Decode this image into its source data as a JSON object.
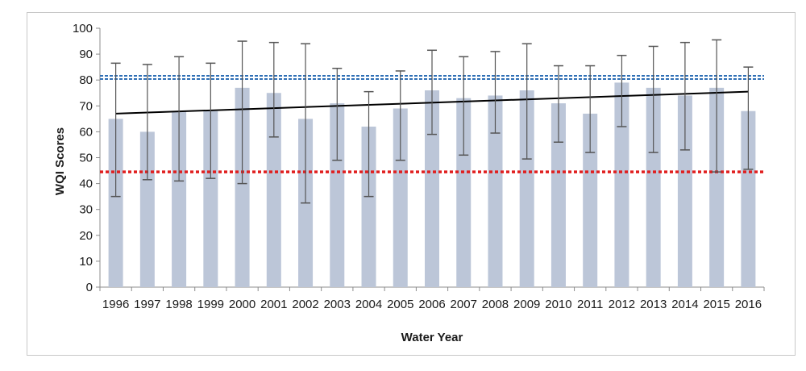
{
  "chart_data": {
    "type": "bar",
    "title": "",
    "xlabel": "Water Year",
    "ylabel": "WQI Scores",
    "ylim": [
      0,
      100
    ],
    "yticks": [
      0,
      10,
      20,
      30,
      40,
      50,
      60,
      70,
      80,
      90,
      100
    ],
    "grid": false,
    "legend": "none",
    "categories": [
      "1996",
      "1997",
      "1998",
      "1999",
      "2000",
      "2001",
      "2002",
      "2003",
      "2004",
      "2005",
      "2006",
      "2007",
      "2008",
      "2009",
      "2010",
      "2011",
      "2012",
      "2013",
      "2014",
      "2015",
      "2016"
    ],
    "series": [
      {
        "values": [
          65,
          60,
          68,
          68,
          77,
          75,
          65,
          71,
          62,
          69,
          76,
          73,
          74,
          76,
          71,
          67,
          79,
          77,
          74,
          77,
          68
        ],
        "error_low": [
          35,
          41.5,
          41,
          42,
          40,
          58,
          32.5,
          49,
          35,
          49,
          59,
          51,
          59.5,
          49.5,
          56,
          52,
          62,
          52,
          53,
          44.5,
          45.5
        ],
        "error_high": [
          86.5,
          86,
          89,
          86.5,
          95,
          94.5,
          94,
          84.5,
          75.5,
          83.5,
          91.5,
          89,
          91,
          94,
          85.5,
          85.5,
          89.5,
          93,
          94.5,
          95.5,
          85
        ],
        "color": "#bcc6d8"
      }
    ],
    "trend_line": {
      "from": 67,
      "to": 75.5,
      "color": "#000000"
    },
    "reference_lines": [
      {
        "value": 81,
        "color": "#2f6fb5",
        "style": "double-dashed"
      },
      {
        "value": 44.5,
        "color": "#e02020",
        "style": "dotted"
      }
    ]
  }
}
